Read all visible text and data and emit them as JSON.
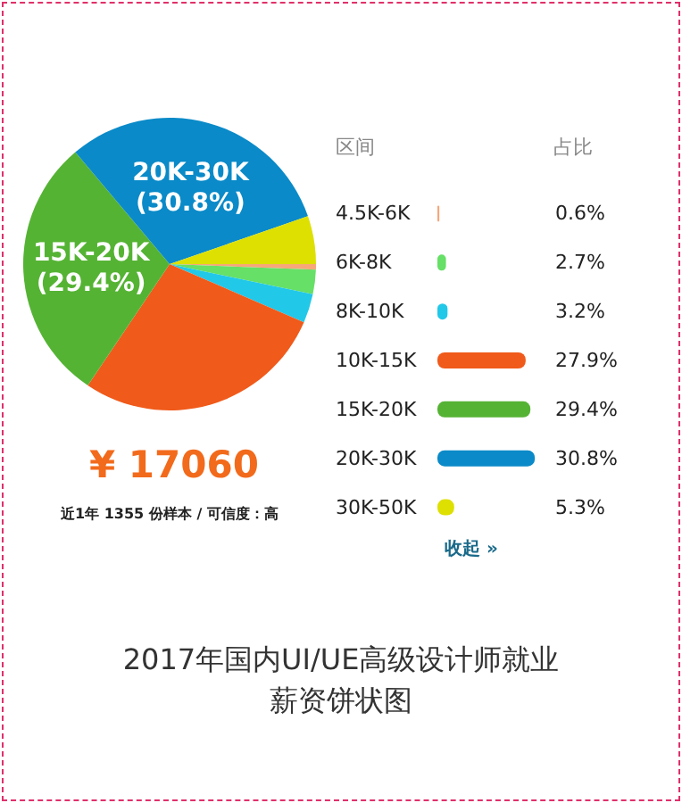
{
  "chart_data": {
    "type": "pie",
    "title": "2017年国内UI/UE高级设计师就业薪资饼状图",
    "legend": "right",
    "categories": [
      "4.5K-6K",
      "6K-8K",
      "8K-10K",
      "10K-15K",
      "15K-20K",
      "20K-30K",
      "30K-50K"
    ],
    "values": [
      0.6,
      2.7,
      3.2,
      27.9,
      29.4,
      30.8,
      5.3
    ],
    "colors": [
      "#f7a77a",
      "#66e066",
      "#22c8e8",
      "#f05a1a",
      "#55b334",
      "#0a8ac8",
      "#dde000"
    ],
    "value_labels": [
      "0.6%",
      "2.7%",
      "3.2%",
      "27.9%",
      "29.4%",
      "30.8%",
      "5.3%"
    ],
    "legend_title": "区间",
    "annotations": [
      "¥ 17060",
      "近1年 1355 份样本 / 可信度：高",
      "占比",
      "收起 »",
      {
        "text": "20K-30K\n(30.8%)",
        "x": "20K-30K"
      },
      {
        "text": "15K-20K\n(29.4%)",
        "x": "15K-20K"
      }
    ]
  }
}
